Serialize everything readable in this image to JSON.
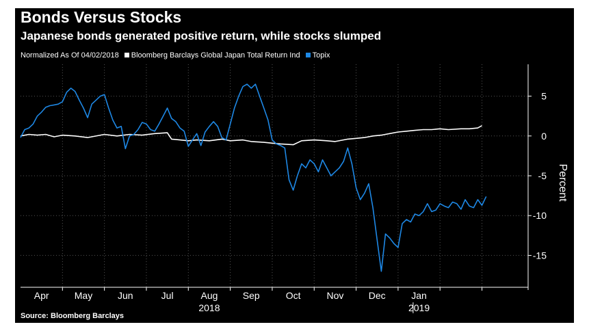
{
  "title": "Bonds Versus Stocks",
  "subtitle": "Japanese bonds generated positive return, while stocks slumped",
  "legend_note": "Normalized As Of 04/02/2018",
  "source": "Source: Bloomberg Barclays",
  "colors": {
    "background": "#000000",
    "bonds": "#ffffff",
    "topix": "#1e88e5",
    "grid": "#555555",
    "text": "#ffffff"
  },
  "chart_data": {
    "type": "line",
    "title": "Bonds Versus Stocks",
    "subtitle": "Japanese bonds generated positive return, while stocks slumped",
    "ylabel": "Percent",
    "xlabel": "",
    "ylim": [
      -19,
      9
    ],
    "xlim": [
      0,
      12.1
    ],
    "yticks": [
      5,
      0,
      -5,
      -10,
      -15
    ],
    "ytick_labels": [
      "5",
      "0",
      "-5",
      "-10",
      "-15"
    ],
    "month_labels": [
      {
        "label": "Apr",
        "x": 0.5
      },
      {
        "label": "May",
        "x": 1.5
      },
      {
        "label": "Jun",
        "x": 2.5
      },
      {
        "label": "Jul",
        "x": 3.5
      },
      {
        "label": "Aug",
        "x": 4.5
      },
      {
        "label": "Sep",
        "x": 5.5
      },
      {
        "label": "Oct",
        "x": 6.5
      },
      {
        "label": "Nov",
        "x": 7.5
      },
      {
        "label": "Dec",
        "x": 8.5
      },
      {
        "label": "Jan",
        "x": 9.5
      }
    ],
    "month_boundaries": [
      1,
      2,
      3,
      4,
      5,
      6,
      7,
      8,
      9,
      10,
      11
    ],
    "year_labels": [
      {
        "label": "2018",
        "x": 4.5
      },
      {
        "label": "2019",
        "x": 9.5
      }
    ],
    "year_divider_x": 9,
    "grid": true,
    "legend_position": "top-left",
    "series": [
      {
        "name": "Bloomberg Barclays Global Japan Total Return Ind",
        "color": "#ffffff",
        "x": [
          0,
          0.2,
          0.4,
          0.6,
          0.8,
          1.0,
          1.3,
          1.6,
          2.0,
          2.3,
          2.6,
          2.9,
          3.2,
          3.5,
          3.6,
          3.8,
          4.0,
          4.2,
          4.5,
          4.8,
          5.0,
          5.3,
          5.5,
          5.8,
          6.0,
          6.2,
          6.5,
          6.7,
          7.0,
          7.3,
          7.5,
          7.8,
          8.0,
          8.2,
          8.4,
          8.6,
          8.8,
          9.0,
          9.2,
          9.4,
          9.6,
          9.8,
          10.0,
          10.2,
          10.5,
          10.7,
          10.9,
          11.0
        ],
        "y": [
          0,
          0.2,
          0.1,
          0.2,
          -0.1,
          0.1,
          0.0,
          -0.2,
          0.2,
          0.0,
          0.2,
          0.1,
          0.3,
          0.4,
          -0.4,
          -0.5,
          -0.6,
          -0.5,
          -0.6,
          -0.4,
          -0.6,
          -0.5,
          -0.7,
          -0.8,
          -0.9,
          -1.0,
          -1.1,
          -0.6,
          -0.5,
          -0.6,
          -0.7,
          -0.4,
          -0.3,
          -0.2,
          0.0,
          0.1,
          0.3,
          0.5,
          0.6,
          0.7,
          0.8,
          0.8,
          0.9,
          0.8,
          0.9,
          0.9,
          1.0,
          1.3
        ]
      },
      {
        "name": "Topix",
        "color": "#1e88e5",
        "x": [
          0,
          0.1,
          0.2,
          0.3,
          0.4,
          0.5,
          0.6,
          0.7,
          0.8,
          0.9,
          1.0,
          1.1,
          1.2,
          1.3,
          1.4,
          1.5,
          1.6,
          1.7,
          1.8,
          1.9,
          2.0,
          2.1,
          2.2,
          2.3,
          2.4,
          2.5,
          2.6,
          2.7,
          2.8,
          2.9,
          3.0,
          3.1,
          3.2,
          3.3,
          3.4,
          3.5,
          3.6,
          3.7,
          3.8,
          3.9,
          4.0,
          4.1,
          4.2,
          4.3,
          4.4,
          4.5,
          4.6,
          4.7,
          4.8,
          4.9,
          5.0,
          5.1,
          5.2,
          5.3,
          5.4,
          5.5,
          5.6,
          5.7,
          5.8,
          5.9,
          6.0,
          6.1,
          6.2,
          6.3,
          6.4,
          6.5,
          6.6,
          6.7,
          6.8,
          6.9,
          7.0,
          7.1,
          7.2,
          7.3,
          7.4,
          7.5,
          7.6,
          7.7,
          7.8,
          7.9,
          8.0,
          8.1,
          8.2,
          8.3,
          8.4,
          8.5,
          8.6,
          8.7,
          8.8,
          8.9,
          9.0,
          9.1,
          9.2,
          9.3,
          9.4,
          9.5,
          9.6,
          9.7,
          9.8,
          9.9,
          10.0,
          10.1,
          10.2,
          10.3,
          10.4,
          10.5,
          10.6,
          10.7,
          10.8,
          10.9,
          11.0,
          11.1
        ],
        "y": [
          -0.2,
          0.8,
          1.0,
          1.5,
          2.5,
          3.0,
          3.6,
          3.8,
          3.9,
          4.0,
          4.3,
          5.5,
          6.0,
          5.6,
          4.5,
          3.5,
          2.3,
          4.0,
          4.5,
          5.0,
          5.2,
          3.5,
          2.0,
          1.0,
          1.2,
          -1.6,
          0.0,
          0.2,
          0.8,
          1.7,
          1.5,
          0.8,
          0.6,
          1.5,
          2.5,
          3.5,
          2.2,
          1.8,
          1.0,
          0.6,
          -1.3,
          -0.5,
          0.3,
          -1.2,
          0.5,
          1.2,
          1.8,
          1.2,
          -0.2,
          -0.5,
          1.5,
          3.5,
          5.0,
          6.2,
          6.5,
          6.0,
          6.5,
          5.0,
          3.5,
          2.0,
          -0.5,
          -1.0,
          -1.2,
          -1.5,
          -5.5,
          -6.8,
          -5.0,
          -3.5,
          -4.0,
          -3.0,
          -3.5,
          -4.5,
          -3.0,
          -4.0,
          -5.0,
          -4.5,
          -4.0,
          -3.2,
          -1.5,
          -3.5,
          -6.5,
          -8.0,
          -7.2,
          -6.0,
          -9.0,
          -13.0,
          -17.0,
          -12.3,
          -12.8,
          -13.5,
          -14.0,
          -11.0,
          -10.5,
          -10.8,
          -9.8,
          -10.0,
          -9.5,
          -8.5,
          -9.5,
          -9.3,
          -8.5,
          -8.8,
          -9.0,
          -8.3,
          -8.5,
          -9.2,
          -8.0,
          -8.8,
          -9.0,
          -8.0,
          -8.7,
          -7.6
        ]
      }
    ]
  }
}
